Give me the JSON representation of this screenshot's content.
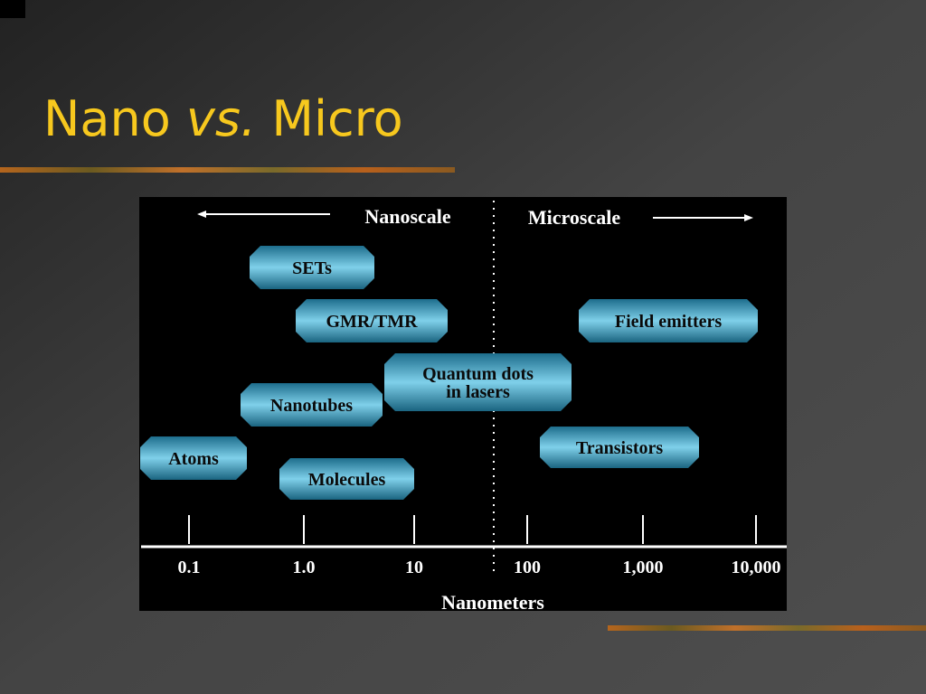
{
  "title": {
    "parts": [
      "Nano ",
      "vs.",
      " Micro"
    ]
  },
  "diagram": {
    "left_label": "Nanoscale",
    "right_label": "Microscale",
    "axis": {
      "title": "Nanometers",
      "ticks": [
        "0.1",
        "1.0",
        "10",
        "100",
        "1,000",
        "10,000"
      ]
    },
    "nodes": [
      {
        "lines": [
          "SETs"
        ]
      },
      {
        "lines": [
          "GMR/TMR"
        ]
      },
      {
        "lines": [
          "Field emitters"
        ]
      },
      {
        "lines": [
          "Quantum dots",
          "in lasers"
        ]
      },
      {
        "lines": [
          "Nanotubes"
        ]
      },
      {
        "lines": [
          "Transistors"
        ]
      },
      {
        "lines": [
          "Atoms"
        ]
      },
      {
        "lines": [
          "Molecules"
        ]
      }
    ]
  }
}
